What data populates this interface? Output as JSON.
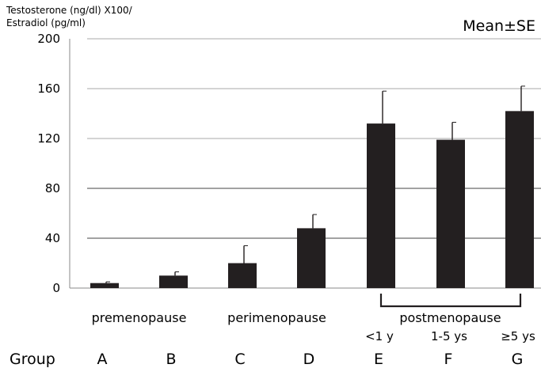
{
  "chart_data": {
    "type": "bar",
    "ylabel_line1": "Testosterone (ng/dl) X100/",
    "ylabel_line2": "Estradiol (pg/ml)",
    "annotation": "Mean±SE",
    "ylim": [
      0,
      200
    ],
    "yticks": [
      0,
      40,
      80,
      120,
      160,
      200
    ],
    "yticks_labels": [
      "0",
      "40",
      "80",
      "120",
      "160",
      "200"
    ],
    "grid": true,
    "categories": [
      "A",
      "B",
      "C",
      "D",
      "E",
      "F",
      "G"
    ],
    "values": [
      4,
      10,
      20,
      48,
      132,
      119,
      142
    ],
    "errors": [
      1,
      3,
      14,
      11,
      26,
      14,
      20
    ],
    "bar_color": "#231f20",
    "group_label": "Group",
    "phases": [
      {
        "label": "premenopause",
        "categories": [
          "A",
          "B"
        ]
      },
      {
        "label": "perimenopause",
        "categories": [
          "C",
          "D"
        ]
      },
      {
        "label": "postmenopause",
        "categories": [
          "E",
          "F",
          "G"
        ],
        "bracket": true
      }
    ],
    "sublabels": [
      "",
      "",
      "",
      "",
      "<1 y",
      "1-5 ys",
      "≥5 ys"
    ]
  }
}
